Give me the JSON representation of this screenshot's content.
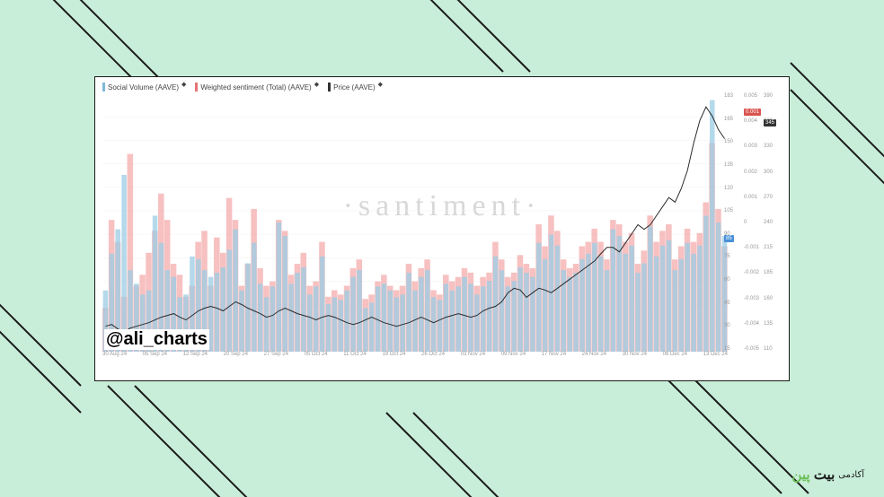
{
  "background_color": "#c8eed9",
  "decorations": {
    "line_color": "#1a1a1a",
    "line_width": 2
  },
  "chart": {
    "type": "combo-bar-line",
    "legend": [
      {
        "label": "Social Volume (AAVE)",
        "color": "#7fb8d8"
      },
      {
        "label": "Weighted sentiment (Total) (AAVE)",
        "color": "#e57373"
      },
      {
        "label": "Price (AAVE)",
        "color": "#333333"
      }
    ],
    "watermark": "·santiment·",
    "attribution": "@ali_charts",
    "x_labels": [
      "30 Aug 24",
      "05 Sep 24",
      "12 Sep 24",
      "20 Sep 24",
      "27 Sep 24",
      "05 Oct 24",
      "11 Oct 24",
      "19 Oct 24",
      "26 Oct 24",
      "03 Nov 24",
      "09 Nov 24",
      "17 Nov 24",
      "24 Nov 24",
      "30 Nov 24",
      "06 Dec 24",
      "13 Dec 24"
    ],
    "y_axes": {
      "social_volume": {
        "ticks": [
          "183",
          "165",
          "150",
          "135",
          "120",
          "105",
          "90",
          "75",
          "60",
          "45",
          "30",
          "15"
        ],
        "badge": "85",
        "badge_color": "#4a90d9"
      },
      "sentiment": {
        "ticks": [
          "0.005",
          "0.004",
          "0.003",
          "0.002",
          "0.001",
          "0",
          "-0.001",
          "-0.002",
          "-0.003",
          "-0.004",
          "-0.005"
        ],
        "badge": "0.001",
        "badge_color": "#d9534f"
      },
      "price": {
        "ticks": [
          "390",
          "360",
          "330",
          "300",
          "270",
          "240",
          "215",
          "185",
          "160",
          "135",
          "110"
        ],
        "badge": "345",
        "badge_color": "#333333"
      }
    },
    "social_volume_color": "#9bcce4",
    "social_volume_opacity": 0.75,
    "sentiment_color": "#f4a6a6",
    "sentiment_opacity": 0.7,
    "price_line_color": "#2a2a2a",
    "price_line_width": 1,
    "grid_color": "#f0f0f0",
    "social_volume_values": [
      45,
      72,
      90,
      130,
      60,
      50,
      42,
      45,
      100,
      80,
      60,
      55,
      40,
      42,
      70,
      68,
      60,
      55,
      58,
      62,
      75,
      90,
      45,
      65,
      80,
      50,
      40,
      48,
      95,
      85,
      50,
      58,
      62,
      42,
      48,
      70,
      35,
      40,
      38,
      45,
      55,
      60,
      32,
      36,
      48,
      50,
      45,
      40,
      42,
      58,
      45,
      55,
      60,
      40,
      38,
      50,
      45,
      48,
      55,
      50,
      42,
      48,
      52,
      70,
      60,
      48,
      52,
      62,
      58,
      55,
      80,
      68,
      86,
      78,
      60,
      55,
      58,
      68,
      72,
      80,
      70,
      60,
      90,
      85,
      72,
      78,
      58,
      65,
      92,
      70,
      78,
      82,
      60,
      68,
      80,
      72,
      78,
      100,
      185,
      95,
      85
    ],
    "sentiment_values": [
      0.2,
      0.6,
      0.5,
      0.25,
      0.9,
      0.3,
      0.35,
      0.45,
      0.55,
      0.72,
      0.6,
      0.4,
      0.35,
      0.25,
      0.3,
      0.5,
      0.55,
      0.3,
      0.52,
      0.45,
      0.7,
      0.6,
      0.3,
      0.4,
      0.65,
      0.38,
      0.3,
      0.32,
      0.6,
      0.55,
      0.35,
      0.4,
      0.45,
      0.3,
      0.32,
      0.5,
      0.25,
      0.28,
      0.26,
      0.3,
      0.38,
      0.42,
      0.24,
      0.26,
      0.32,
      0.35,
      0.3,
      0.28,
      0.3,
      0.4,
      0.32,
      0.38,
      0.42,
      0.28,
      0.26,
      0.35,
      0.32,
      0.34,
      0.38,
      0.36,
      0.3,
      0.34,
      0.36,
      0.5,
      0.42,
      0.34,
      0.36,
      0.44,
      0.4,
      0.38,
      0.58,
      0.48,
      0.62,
      0.55,
      0.42,
      0.38,
      0.4,
      0.48,
      0.5,
      0.56,
      0.5,
      0.42,
      0.6,
      0.58,
      0.5,
      0.54,
      0.4,
      0.46,
      0.62,
      0.5,
      0.55,
      0.58,
      0.42,
      0.48,
      0.56,
      0.5,
      0.54,
      0.68,
      0.95,
      0.65,
      0.48
    ],
    "price_values": [
      138,
      140,
      135,
      132,
      136,
      138,
      140,
      142,
      145,
      148,
      150,
      152,
      148,
      145,
      150,
      155,
      158,
      160,
      158,
      155,
      160,
      165,
      162,
      158,
      155,
      152,
      148,
      150,
      155,
      158,
      155,
      152,
      150,
      148,
      145,
      148,
      150,
      148,
      145,
      142,
      140,
      142,
      145,
      148,
      145,
      142,
      140,
      138,
      140,
      142,
      145,
      148,
      145,
      142,
      145,
      148,
      150,
      152,
      150,
      148,
      150,
      155,
      158,
      160,
      165,
      175,
      180,
      178,
      170,
      175,
      180,
      178,
      175,
      180,
      185,
      190,
      195,
      200,
      205,
      210,
      218,
      225,
      225,
      220,
      230,
      240,
      250,
      245,
      250,
      260,
      270,
      280,
      275,
      290,
      310,
      340,
      365,
      380,
      370,
      355,
      345
    ]
  },
  "brand": {
    "text_main": "بیت پین",
    "text_small": "آکادمی",
    "accent_color": "#6bbf59"
  }
}
